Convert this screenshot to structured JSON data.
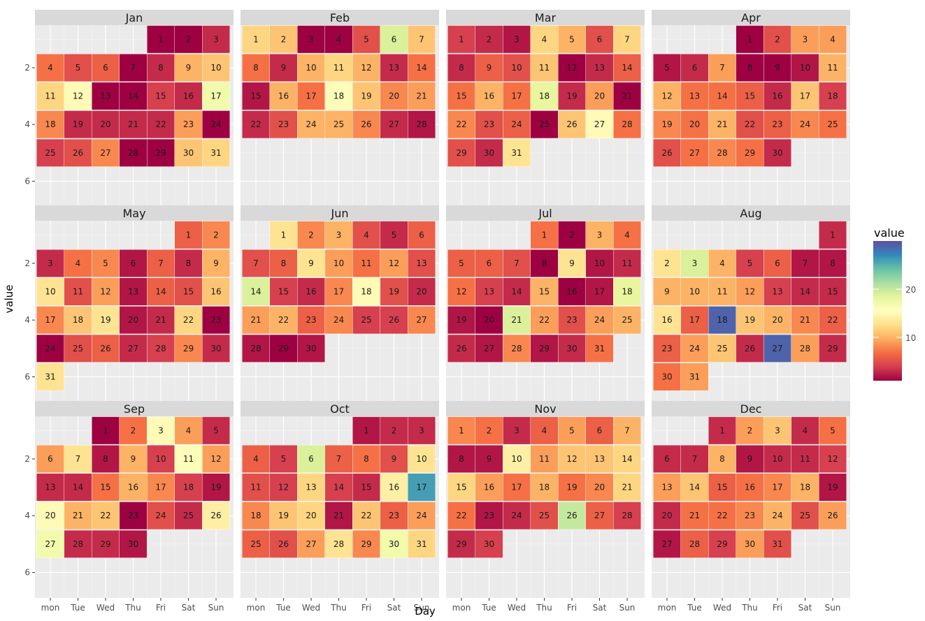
{
  "chart_data": {
    "type": "heatmap",
    "xlabel": "Day",
    "ylabel": "value",
    "weekdays": [
      "mon",
      "Tue",
      "Wed",
      "Thu",
      "Fri",
      "Sat",
      "Sun"
    ],
    "y_ticks": [
      2,
      4,
      6
    ],
    "ylim": [
      6.9,
      0.5
    ],
    "grid": true,
    "legend": {
      "title": "value",
      "position": "right",
      "ticks": [
        10,
        20
      ],
      "range": [
        1,
        30
      ]
    },
    "colormap": [
      "#9e0142",
      "#d53e4f",
      "#f46d43",
      "#fdae61",
      "#fee08b",
      "#ffffbf",
      "#e6f598",
      "#abdda4",
      "#66c2a5",
      "#3288bd",
      "#5e4fa2"
    ],
    "months": [
      {
        "name": "Jan",
        "first_weekday": 4,
        "values": [
          1,
          1,
          3,
          7,
          5,
          6,
          1,
          3,
          10,
          11,
          12,
          15,
          1,
          1,
          4,
          3,
          17,
          8,
          3,
          3,
          3,
          3,
          9,
          1,
          4,
          5,
          8,
          1,
          1,
          11,
          12
        ]
      },
      {
        "name": "Feb",
        "first_weekday": 0,
        "values": [
          12,
          11,
          1,
          1,
          5,
          19,
          11,
          7,
          3,
          10,
          12,
          10,
          3,
          7,
          2,
          10,
          7,
          16,
          11,
          8,
          9,
          3,
          5,
          10,
          10,
          8,
          3,
          2
        ]
      },
      {
        "name": "Mar",
        "first_weekday": 0,
        "values": [
          4,
          3,
          2,
          12,
          10,
          5,
          12,
          3,
          6,
          5,
          11,
          1,
          3,
          6,
          7,
          10,
          7,
          18,
          3,
          9,
          1,
          8,
          5,
          6,
          1,
          11,
          15,
          7,
          5,
          3,
          13
        ]
      },
      {
        "name": "Apr",
        "first_weekday": 3,
        "values": [
          1,
          5,
          9,
          9,
          2,
          3,
          9,
          1,
          1,
          2,
          10,
          10,
          7,
          7,
          6,
          3,
          11,
          4,
          8,
          7,
          10,
          5,
          6,
          8,
          7,
          5,
          7,
          8,
          7,
          3
        ]
      },
      {
        "name": "May",
        "first_weekday": 5,
        "values": [
          6,
          8,
          3,
          7,
          8,
          2,
          6,
          3,
          10,
          13,
          5,
          9,
          2,
          6,
          5,
          11,
          8,
          11,
          13,
          2,
          3,
          12,
          1,
          1,
          5,
          6,
          3,
          4,
          8,
          3,
          13
        ]
      },
      {
        "name": "Jun",
        "first_weekday": 1,
        "values": [
          13,
          8,
          10,
          5,
          3,
          6,
          5,
          6,
          13,
          9,
          7,
          9,
          5,
          19,
          4,
          3,
          8,
          15,
          5,
          3,
          9,
          10,
          6,
          8,
          4,
          4,
          8,
          2,
          1,
          2
        ]
      },
      {
        "name": "Jul",
        "first_weekday": 3,
        "values": [
          7,
          1,
          10,
          7,
          6,
          6,
          5,
          1,
          13,
          2,
          3,
          7,
          4,
          3,
          10,
          1,
          2,
          18,
          2,
          1,
          19,
          9,
          5,
          9,
          10,
          3,
          2,
          8,
          2,
          3,
          7
        ]
      },
      {
        "name": "Aug",
        "first_weekday": 6,
        "values": [
          3,
          13,
          19,
          10,
          4,
          6,
          2,
          2,
          10,
          10,
          10,
          9,
          4,
          3,
          3,
          13,
          6,
          29,
          11,
          10,
          8,
          6,
          6,
          9,
          11,
          3,
          29,
          9,
          3,
          7,
          9
        ]
      },
      {
        "name": "Sep",
        "first_weekday": 2,
        "values": [
          1,
          7,
          15,
          9,
          3,
          9,
          13,
          2,
          10,
          4,
          16,
          9,
          3,
          3,
          7,
          10,
          8,
          4,
          2,
          15,
          10,
          11,
          1,
          5,
          3,
          14,
          17,
          3,
          3,
          2
        ]
      },
      {
        "name": "Oct",
        "first_weekday": 4,
        "values": [
          2,
          3,
          3,
          6,
          4,
          19,
          6,
          7,
          5,
          13,
          5,
          4,
          12,
          4,
          3,
          14,
          26,
          8,
          11,
          12,
          2,
          11,
          6,
          9,
          6,
          5,
          9,
          13,
          8,
          17,
          12
        ]
      },
      {
        "name": "Nov",
        "first_weekday": 0,
        "values": [
          8,
          7,
          3,
          6,
          9,
          6,
          10,
          2,
          2,
          14,
          9,
          11,
          11,
          12,
          12,
          9,
          7,
          10,
          7,
          8,
          12,
          7,
          2,
          3,
          5,
          20,
          6,
          4,
          3,
          4
        ]
      },
      {
        "name": "Dec",
        "first_weekday": 2,
        "values": [
          3,
          9,
          11,
          3,
          7,
          3,
          3,
          10,
          2,
          3,
          3,
          4,
          9,
          11,
          6,
          7,
          8,
          10,
          2,
          3,
          7,
          7,
          8,
          10,
          5,
          9,
          2,
          6,
          4,
          9,
          5
        ]
      }
    ]
  }
}
